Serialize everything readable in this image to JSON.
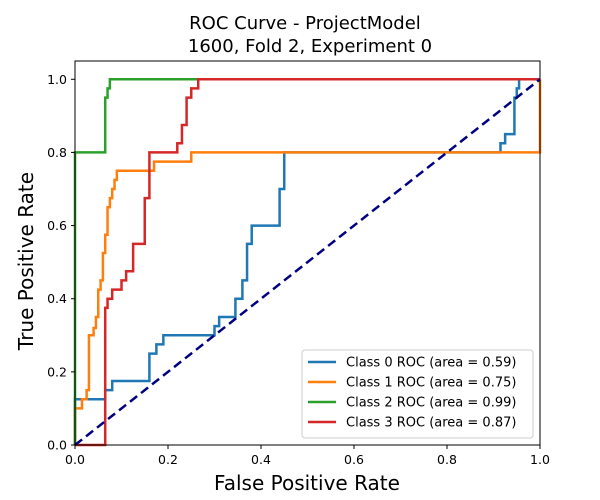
{
  "chart_data": {
    "type": "line",
    "title_line1": "ROC Curve - ProjectModel",
    "title_line2": "1600, Fold 2, Experiment 0",
    "xlabel": "False Positive Rate",
    "ylabel": "True Positive Rate",
    "xlim": [
      0.0,
      1.0
    ],
    "ylim": [
      0.0,
      1.05
    ],
    "xticks": [
      "0.0",
      "0.2",
      "0.4",
      "0.6",
      "0.8",
      "1.0"
    ],
    "xtick_values": [
      0.0,
      0.2,
      0.4,
      0.6,
      0.8,
      1.0
    ],
    "yticks": [
      "0.0",
      "0.2",
      "0.4",
      "0.6",
      "0.8",
      "1.0"
    ],
    "ytick_values": [
      0.0,
      0.2,
      0.4,
      0.6,
      0.8,
      1.0
    ],
    "grid": false,
    "legend_position": "lower-right",
    "diagonal": {
      "x": [
        0.0,
        1.0
      ],
      "y": [
        0.0,
        1.0
      ],
      "color": "#000080",
      "style": "dashed"
    },
    "series": [
      {
        "name": "Class 0 ROC (area = 0.59)",
        "color": "#1f77b4",
        "x": [
          0.0,
          0.0,
          0.0,
          0.065,
          0.065,
          0.08,
          0.08,
          0.16,
          0.16,
          0.175,
          0.175,
          0.19,
          0.19,
          0.3,
          0.3,
          0.31,
          0.31,
          0.345,
          0.345,
          0.36,
          0.36,
          0.37,
          0.37,
          0.38,
          0.38,
          0.44,
          0.44,
          0.45,
          0.45,
          0.915,
          0.915,
          0.925,
          0.925,
          0.945,
          0.945,
          0.95,
          0.95,
          0.955,
          0.955,
          1.0
        ],
        "y": [
          0.0,
          0.125,
          0.125,
          0.125,
          0.15,
          0.15,
          0.175,
          0.175,
          0.25,
          0.25,
          0.275,
          0.275,
          0.3,
          0.3,
          0.325,
          0.325,
          0.35,
          0.35,
          0.4,
          0.4,
          0.45,
          0.45,
          0.55,
          0.55,
          0.6,
          0.6,
          0.7,
          0.7,
          0.8,
          0.8,
          0.825,
          0.825,
          0.85,
          0.85,
          0.95,
          0.95,
          0.975,
          0.975,
          1.0,
          1.0
        ]
      },
      {
        "name": "Class 1 ROC (area = 0.75)",
        "color": "#ff7f0e",
        "x": [
          0.0,
          0.0,
          0.015,
          0.015,
          0.025,
          0.025,
          0.03,
          0.03,
          0.04,
          0.04,
          0.045,
          0.045,
          0.05,
          0.05,
          0.055,
          0.055,
          0.06,
          0.06,
          0.065,
          0.065,
          0.07,
          0.07,
          0.075,
          0.075,
          0.08,
          0.08,
          0.085,
          0.085,
          0.09,
          0.09,
          0.095,
          0.095,
          0.11,
          0.11,
          0.16,
          0.16,
          0.17,
          0.17,
          0.25,
          0.25,
          1.0,
          1.0
        ],
        "y": [
          0.0,
          0.1,
          0.1,
          0.125,
          0.125,
          0.15,
          0.15,
          0.3,
          0.3,
          0.32,
          0.32,
          0.35,
          0.35,
          0.425,
          0.425,
          0.45,
          0.45,
          0.525,
          0.525,
          0.575,
          0.575,
          0.65,
          0.65,
          0.675,
          0.675,
          0.7,
          0.7,
          0.725,
          0.725,
          0.75,
          0.75,
          0.75,
          0.75,
          0.75,
          0.75,
          0.75,
          0.75,
          0.775,
          0.775,
          0.8,
          0.8,
          1.0
        ]
      },
      {
        "name": "Class 2 ROC (area = 0.99)",
        "color": "#2ca02c",
        "x": [
          0.0,
          0.0,
          0.0,
          0.065,
          0.065,
          0.07,
          0.07,
          0.075,
          0.075,
          1.0
        ],
        "y": [
          0.0,
          0.8,
          0.8,
          0.8,
          0.95,
          0.95,
          0.975,
          0.975,
          1.0,
          1.0
        ]
      },
      {
        "name": "Class 3 ROC (area = 0.87)",
        "color": "#d62728",
        "x": [
          0.0,
          0.065,
          0.065,
          0.07,
          0.07,
          0.08,
          0.08,
          0.1,
          0.1,
          0.11,
          0.11,
          0.125,
          0.125,
          0.15,
          0.15,
          0.16,
          0.16,
          0.22,
          0.22,
          0.23,
          0.23,
          0.24,
          0.24,
          0.25,
          0.25,
          0.265,
          0.265,
          1.0
        ],
        "y": [
          0.0,
          0.0,
          0.375,
          0.375,
          0.4,
          0.4,
          0.425,
          0.425,
          0.45,
          0.45,
          0.475,
          0.475,
          0.55,
          0.55,
          0.675,
          0.675,
          0.8,
          0.8,
          0.825,
          0.825,
          0.875,
          0.875,
          0.95,
          0.95,
          0.975,
          0.975,
          1.0,
          1.0
        ]
      }
    ]
  }
}
